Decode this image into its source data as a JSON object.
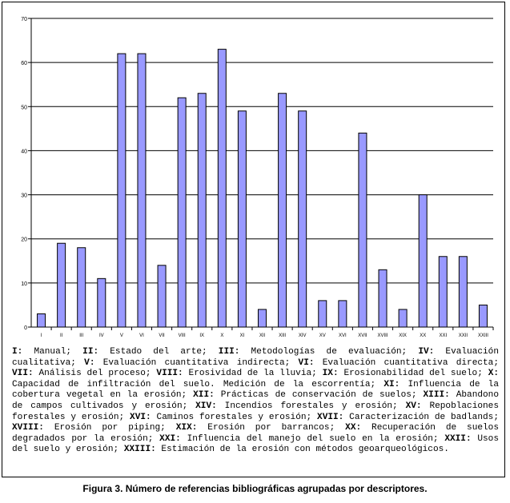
{
  "chart_data": {
    "type": "bar",
    "categories": [
      "I",
      "II",
      "III",
      "IV",
      "V",
      "VI",
      "VII",
      "VIII",
      "IX",
      "X",
      "XI",
      "XII",
      "XIII",
      "XIV",
      "XV",
      "XVI",
      "XVII",
      "XVIII",
      "XIX",
      "XX",
      "XXI",
      "XXII",
      "XXIII"
    ],
    "values": [
      3,
      19,
      18,
      11,
      62,
      62,
      14,
      52,
      53,
      63,
      49,
      4,
      53,
      49,
      6,
      6,
      44,
      13,
      4,
      30,
      16,
      16,
      5
    ],
    "ylim": [
      0,
      70
    ],
    "yticks": [
      0,
      10,
      20,
      30,
      40,
      50,
      60,
      70
    ],
    "grid": true,
    "bar_color": "#9999ff"
  },
  "legend": [
    {
      "code": "I:",
      "text": " Manual; "
    },
    {
      "code": "II:",
      "text": " Estado del arte; "
    },
    {
      "code": "III:",
      "text": " Metodologías de evaluación; "
    },
    {
      "code": "IV:",
      "text": " Evaluación cualitativa; "
    },
    {
      "code": "V:",
      "text": " Evaluación cuantitativa indirecta; "
    },
    {
      "code": "VI:",
      "text": " Evaluación cuantitativa directa; "
    },
    {
      "code": "VII:",
      "text": " Análisis del proceso; "
    },
    {
      "code": "VIII:",
      "text": " Erosividad de la lluvia; "
    },
    {
      "code": "IX:",
      "text": " Erosionabilidad del suelo; "
    },
    {
      "code": "X:",
      "text": " Capacidad de infiltración del suelo. Medición de la escorrentía; "
    },
    {
      "code": "XI:",
      "text": " Influencia de la cobertura vegetal en la erosión; "
    },
    {
      "code": "XII:",
      "text": " Prácticas de conservación de suelos; "
    },
    {
      "code": "XIII:",
      "text": " Abandono de campos cultivados y erosión; "
    },
    {
      "code": "XIV:",
      "text": " Incendios forestales y erosión; "
    },
    {
      "code": "XV:",
      "text": " Repoblaciones forestales y erosión; "
    },
    {
      "code": "XVI:",
      "text": " Caminos forestales y erosión; "
    },
    {
      "code": "XVII:",
      "text": " Caracterización de badlands; "
    },
    {
      "code": "XVIII:",
      "text": " Erosión por piping; "
    },
    {
      "code": "XIX:",
      "text": " Erosión por barrancos; "
    },
    {
      "code": "XX:",
      "text": " Recuperación de suelos degradados por la erosión; "
    },
    {
      "code": "XXI:",
      "text": " Influencia del manejo del suelo en la erosión; "
    },
    {
      "code": "XXII:",
      "text": " Usos del suelo y erosión; "
    },
    {
      "code": "XXIII:",
      "text": " Estimación de la erosión con métodos geoarqueológicos."
    }
  ],
  "caption": "Figura 3. Número de referencias bibliográficas agrupadas por descriptores."
}
